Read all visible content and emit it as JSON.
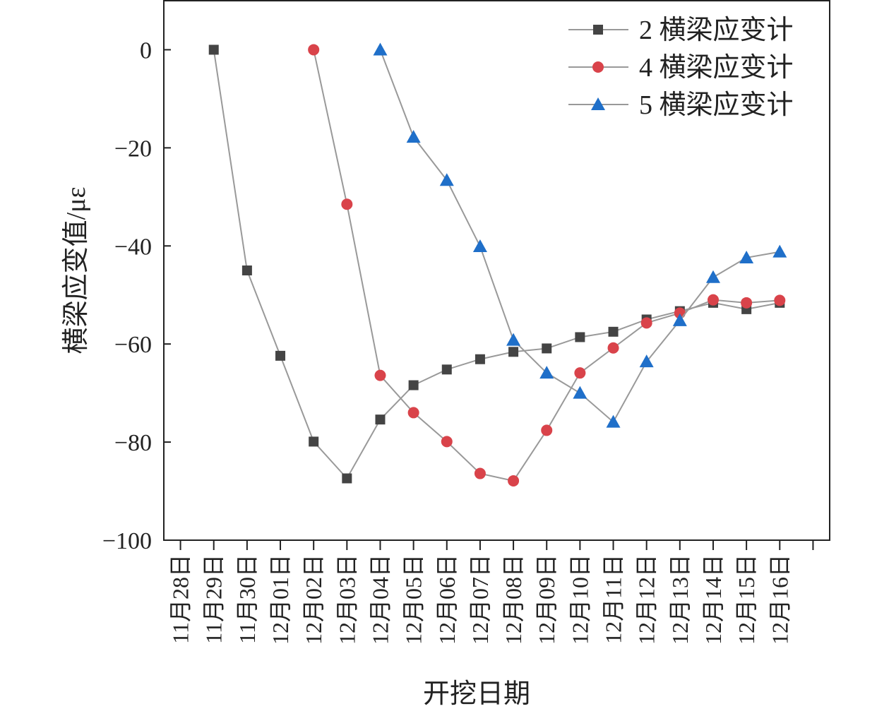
{
  "chart_data": {
    "type": "line",
    "x_label": "开挖日期",
    "y_label": "横梁应变值/με",
    "categories": [
      "11月28日",
      "11月29日",
      "11月30日",
      "12月01日",
      "12月02日",
      "12月03日",
      "12月04日",
      "12月05日",
      "12月06日",
      "12月07日",
      "12月08日",
      "12月09日",
      "12月10日",
      "12月11日",
      "12月12日",
      "12月13日",
      "12月14日",
      "12月15日",
      "12月16日",
      null
    ],
    "series": [
      {
        "name": "2 横梁应变计",
        "color": "#444444",
        "marker": "square",
        "values": [
          null,
          0,
          -45.0,
          -62.4,
          -79.9,
          -87.4,
          -75.4,
          -68.4,
          -65.2,
          -63.1,
          -61.6,
          -60.9,
          -58.6,
          -57.5,
          -55.0,
          -53.3,
          -51.6,
          -52.9,
          -51.6,
          null
        ]
      },
      {
        "name": "4 横梁应变计",
        "color": "#d9434a",
        "marker": "circle",
        "values": [
          null,
          null,
          null,
          null,
          0,
          -31.5,
          -66.4,
          -74.0,
          -79.9,
          -86.4,
          -87.9,
          -77.6,
          -65.9,
          -60.8,
          -55.7,
          -53.7,
          -51.0,
          -51.6,
          -51.1,
          null
        ]
      },
      {
        "name": "5 横梁应变计",
        "color": "#1f6fc9",
        "marker": "triangle",
        "values": [
          null,
          null,
          null,
          null,
          null,
          null,
          0,
          -17.8,
          -26.6,
          -40.1,
          -59.2,
          -65.9,
          -70.0,
          -75.9,
          -63.6,
          -55.2,
          -46.4,
          -42.4,
          -41.2,
          null
        ]
      }
    ],
    "line_color": "#999999",
    "ylim": [
      -100,
      10
    ],
    "yticks": [
      {
        "value": -100,
        "label": "−100"
      },
      {
        "value": -80,
        "label": "−80"
      },
      {
        "value": -60,
        "label": "−60"
      },
      {
        "value": -40,
        "label": "−40"
      },
      {
        "value": -20,
        "label": "−20"
      },
      0
    ],
    "legend": "top-right"
  }
}
